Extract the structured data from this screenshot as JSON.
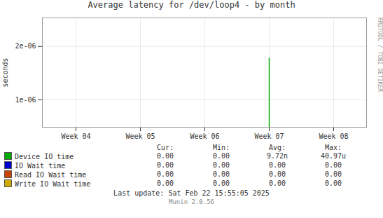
{
  "chart_data": {
    "type": "bar",
    "title": "Average latency for /dev/loop4 - by month",
    "categories": [
      "Week 04",
      "Week 05",
      "Week 06",
      "Week 07",
      "Week 08"
    ],
    "y_label": "seconds",
    "log": "y",
    "ylim": [
      7e-07,
      2.9e-06
    ],
    "yticks": [
      {
        "value": 1e-06,
        "label": "1e-06"
      },
      {
        "value": 2e-06,
        "label": "2e-06"
      }
    ],
    "grid": true,
    "legend": "bottom",
    "table_headers": [
      "Cur:",
      "Min:",
      "Avg:",
      "Max:"
    ],
    "series": [
      {
        "name": "Device IO time",
        "color": "#00aa00",
        "values": [
          null,
          null,
          null,
          1.72e-06,
          null
        ],
        "table_values": [
          "0.00",
          "0.00",
          "9.72n",
          "40.97u"
        ]
      },
      {
        "name": "IO Wait time",
        "color": "#0000cc",
        "values": [
          null,
          null,
          null,
          null,
          null
        ],
        "table_values": [
          "0.00",
          "0.00",
          "0.00",
          "0.00"
        ]
      },
      {
        "name": "Read IO Wait time",
        "color": "#cc4400",
        "values": [
          null,
          null,
          null,
          null,
          null
        ],
        "table_values": [
          "0.00",
          "0.00",
          "0.00",
          "0.00"
        ]
      },
      {
        "name": "Write IO Wait time",
        "color": "#ccaa00",
        "values": [
          null,
          null,
          null,
          null,
          null
        ],
        "table_values": [
          "0.00",
          "0.00",
          "0.00",
          "0.00"
        ]
      }
    ],
    "annotations": [
      "RRDTOOL / TOBI OETIKER",
      "Last update: Sat Feb 22 15:55:05 2025",
      "Munin 2.0.56"
    ]
  }
}
